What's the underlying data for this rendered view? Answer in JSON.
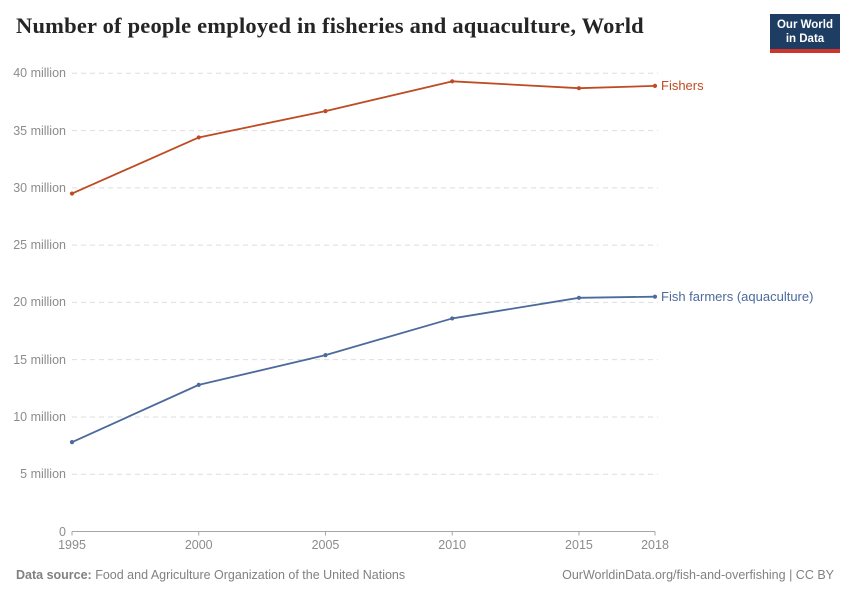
{
  "header": {
    "title": "Number of people employed in fisheries and aquaculture, World",
    "logo": {
      "line1": "Our World",
      "line2": "in Data",
      "bg_color": "#1d3d63",
      "bar_color": "#d0352c",
      "text_color": "#ffffff"
    }
  },
  "chart_data": {
    "type": "line",
    "title": "Number of people employed in fisheries and aquaculture, World",
    "x": [
      1995,
      2000,
      2005,
      2010,
      2015,
      2018
    ],
    "x_tick_labels": [
      "1995",
      "2000",
      "2005",
      "2010",
      "2015",
      "2018"
    ],
    "series": [
      {
        "name": "Fishers",
        "color": "#bf4b23",
        "values_million": [
          29.5,
          34.4,
          36.7,
          39.3,
          38.7,
          38.9
        ]
      },
      {
        "name": "Fish farmers (aquaculture)",
        "color": "#4c6a9c",
        "values_million": [
          7.8,
          12.8,
          15.4,
          18.6,
          20.4,
          20.5
        ]
      }
    ],
    "unit": "million people",
    "y_ticks": [
      0,
      5,
      10,
      15,
      20,
      25,
      30,
      35,
      40
    ],
    "y_tick_labels": [
      "0",
      "5 million",
      "10 million",
      "15 million",
      "20 million",
      "25 million",
      "30 million",
      "35 million",
      "40 million"
    ],
    "ylim": [
      0,
      40
    ],
    "xlim": [
      1995,
      2018
    ],
    "grid": "horizontal-dashed",
    "legend_position": "end-of-line-labels"
  },
  "footer": {
    "source_label": "Data source:",
    "source_name": "Food and Agriculture Organization of the United Nations",
    "credit_link": "OurWorldinData.org/fish-and-overfishing",
    "credit_separator": " | ",
    "credit_license": "CC BY"
  }
}
